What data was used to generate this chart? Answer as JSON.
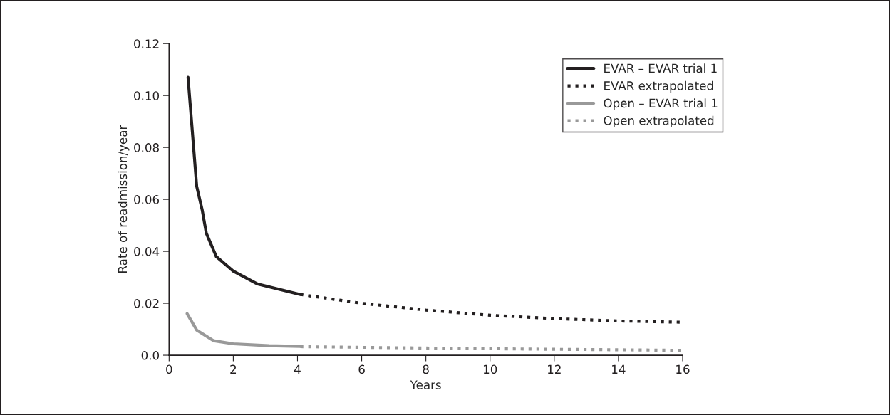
{
  "chart_data": {
    "type": "line",
    "xlabel": "Years",
    "ylabel": "Rate of readmission/year",
    "xlim": [
      0,
      16
    ],
    "xticks": [
      0,
      2,
      4,
      6,
      8,
      10,
      12,
      14,
      16
    ],
    "ylim": [
      0,
      0.12
    ],
    "yticks": [
      {
        "value": 0,
        "label": "0.0"
      },
      {
        "value": 0.02,
        "label": "0.02"
      },
      {
        "value": 0.04,
        "label": "0.04"
      },
      {
        "value": 0.06,
        "label": "0.06"
      },
      {
        "value": 0.08,
        "label": "0.08"
      },
      {
        "value": 0.1,
        "label": "0.10"
      },
      {
        "value": 0.12,
        "label": "0.12"
      }
    ],
    "grid": false,
    "legend": "top right",
    "series": [
      {
        "name": "EVAR – EVAR trial 1",
        "color": "#231f20",
        "line_style": "solid",
        "x": [
          0.59,
          0.86,
          1.03,
          1.16,
          1.47,
          2.0,
          2.76,
          4.09
        ],
        "values": [
          0.107,
          0.065,
          0.056,
          0.047,
          0.038,
          0.0324,
          0.0274,
          0.0234
        ]
      },
      {
        "name": "EVAR extrapolated",
        "color": "#231f20",
        "line_style": "dotted",
        "x": [
          4.09,
          6,
          8,
          10,
          12,
          14,
          16
        ],
        "values": [
          0.0234,
          0.02,
          0.0174,
          0.0154,
          0.0141,
          0.0132,
          0.0127
        ]
      },
      {
        "name": "Open – EVAR trial 1",
        "color": "#999999",
        "line_style": "solid",
        "x": [
          0.56,
          0.86,
          1.38,
          2.0,
          3.1,
          4.09
        ],
        "values": [
          0.016,
          0.0097,
          0.0056,
          0.0044,
          0.0037,
          0.0034
        ]
      },
      {
        "name": "Open extrapolated",
        "color": "#999999",
        "line_style": "dotted",
        "x": [
          4.09,
          10,
          16
        ],
        "values": [
          0.0033,
          0.0025,
          0.0019
        ]
      }
    ]
  }
}
